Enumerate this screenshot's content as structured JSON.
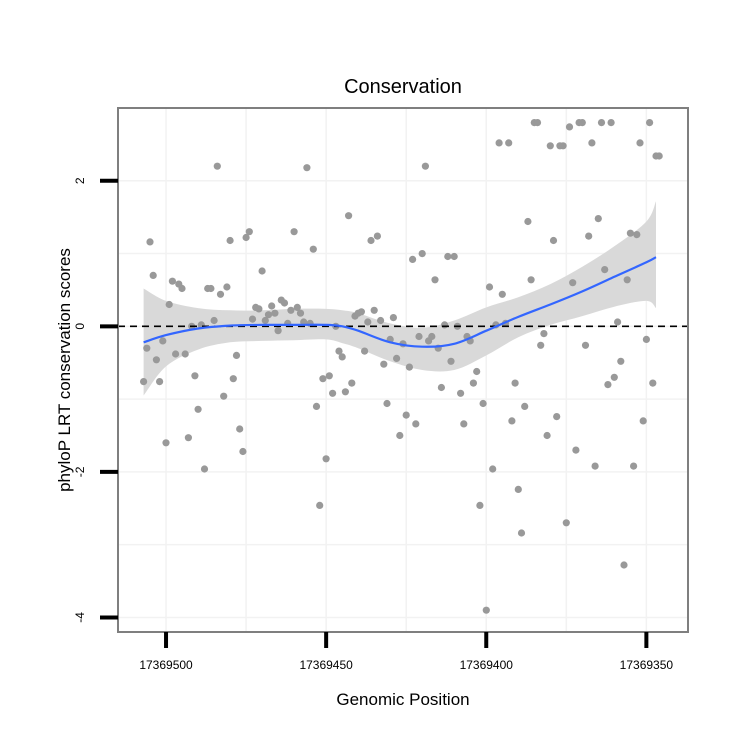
{
  "chart_data": {
    "type": "scatter",
    "title": "Conservation",
    "xlabel": "Genomic Position",
    "ylabel": "phyloP LRT conservation scores",
    "x_reversed": true,
    "xlim": [
      17369515,
      17369337
    ],
    "ylim": [
      -4.2,
      3.0
    ],
    "x_ticks": [
      17369500,
      17369450,
      17369400,
      17369350
    ],
    "x_tick_labels": [
      "17369500",
      "17369450",
      "17369400",
      "17369350"
    ],
    "y_ticks": [
      -4,
      -2,
      0,
      2
    ],
    "y_tick_labels": [
      "-4",
      "-2",
      "0",
      "2"
    ],
    "grid": true,
    "reference_line": {
      "y": 0,
      "style": "dashed"
    },
    "colors": {
      "points": "#999999",
      "smooth": "#3366FF",
      "ribbon": "#d9d9d9",
      "panel_border": "#7f7f7f",
      "grid": "#f2f2f2"
    },
    "points": [
      [
        17369507,
        -0.76
      ],
      [
        17369506,
        -0.3
      ],
      [
        17369505,
        1.16
      ],
      [
        17369504,
        0.7
      ],
      [
        17369503,
        -0.46
      ],
      [
        17369502,
        -0.76
      ],
      [
        17369501,
        -0.2
      ],
      [
        17369500,
        -1.6
      ],
      [
        17369499,
        0.3
      ],
      [
        17369498,
        0.62
      ],
      [
        17369497,
        -0.38
      ],
      [
        17369496,
        0.58
      ],
      [
        17369495,
        0.52
      ],
      [
        17369494,
        -0.38
      ],
      [
        17369493,
        -1.53
      ],
      [
        17369492,
        0.0
      ],
      [
        17369491,
        -0.68
      ],
      [
        17369490,
        -1.14
      ],
      [
        17369489,
        0.02
      ],
      [
        17369488,
        -1.96
      ],
      [
        17369487,
        0.52
      ],
      [
        17369486,
        0.52
      ],
      [
        17369485,
        0.08
      ],
      [
        17369484,
        2.2
      ],
      [
        17369483,
        0.44
      ],
      [
        17369482,
        -0.96
      ],
      [
        17369481,
        0.54
      ],
      [
        17369480,
        1.18
      ],
      [
        17369479,
        -0.72
      ],
      [
        17369478,
        -0.4
      ],
      [
        17369477,
        -1.41
      ],
      [
        17369476,
        -1.72
      ],
      [
        17369475,
        1.22
      ],
      [
        17369474,
        1.3
      ],
      [
        17369473,
        0.1
      ],
      [
        17369472,
        0.26
      ],
      [
        17369471,
        0.24
      ],
      [
        17369470,
        0.76
      ],
      [
        17369469,
        0.08
      ],
      [
        17369468,
        0.16
      ],
      [
        17369467,
        0.28
      ],
      [
        17369466,
        0.18
      ],
      [
        17369465,
        -0.06
      ],
      [
        17369464,
        0.36
      ],
      [
        17369463,
        0.32
      ],
      [
        17369462,
        0.04
      ],
      [
        17369461,
        0.22
      ],
      [
        17369460,
        1.3
      ],
      [
        17369459,
        0.26
      ],
      [
        17369458,
        0.18
      ],
      [
        17369457,
        0.06
      ],
      [
        17369456,
        2.18
      ],
      [
        17369455,
        0.04
      ],
      [
        17369454,
        1.06
      ],
      [
        17369453,
        -1.1
      ],
      [
        17369452,
        -2.46
      ],
      [
        17369451,
        -0.72
      ],
      [
        17369450,
        -1.82
      ],
      [
        17369449,
        -0.68
      ],
      [
        17369448,
        -0.92
      ],
      [
        17369447,
        0.0
      ],
      [
        17369446,
        -0.34
      ],
      [
        17369445,
        -0.42
      ],
      [
        17369444,
        -0.9
      ],
      [
        17369443,
        1.52
      ],
      [
        17369442,
        -0.78
      ],
      [
        17369441,
        0.14
      ],
      [
        17369440,
        0.18
      ],
      [
        17369439,
        0.2
      ],
      [
        17369438,
        -0.34
      ],
      [
        17369437,
        0.06
      ],
      [
        17369436,
        1.18
      ],
      [
        17369435,
        0.22
      ],
      [
        17369434,
        1.24
      ],
      [
        17369433,
        0.08
      ],
      [
        17369432,
        -0.52
      ],
      [
        17369431,
        -1.06
      ],
      [
        17369430,
        -0.18
      ],
      [
        17369429,
        0.12
      ],
      [
        17369428,
        -0.44
      ],
      [
        17369427,
        -1.5
      ],
      [
        17369426,
        -0.24
      ],
      [
        17369425,
        -1.22
      ],
      [
        17369424,
        -0.56
      ],
      [
        17369423,
        0.92
      ],
      [
        17369422,
        -1.34
      ],
      [
        17369421,
        -0.14
      ],
      [
        17369420,
        1.0
      ],
      [
        17369419,
        2.2
      ],
      [
        17369418,
        -0.2
      ],
      [
        17369417,
        -0.14
      ],
      [
        17369416,
        0.64
      ],
      [
        17369415,
        -0.3
      ],
      [
        17369414,
        -0.84
      ],
      [
        17369413,
        0.02
      ],
      [
        17369412,
        0.96
      ],
      [
        17369411,
        -0.48
      ],
      [
        17369410,
        0.96
      ],
      [
        17369409,
        0.0
      ],
      [
        17369408,
        -0.92
      ],
      [
        17369407,
        -1.34
      ],
      [
        17369406,
        -0.14
      ],
      [
        17369405,
        -0.2
      ],
      [
        17369404,
        -0.78
      ],
      [
        17369403,
        -0.62
      ],
      [
        17369402,
        -2.46
      ],
      [
        17369401,
        -1.06
      ],
      [
        17369400,
        -3.9
      ],
      [
        17369399,
        0.54
      ],
      [
        17369398,
        -1.96
      ],
      [
        17369397,
        0.02
      ],
      [
        17369396,
        2.52
      ],
      [
        17369395,
        0.44
      ],
      [
        17369394,
        0.04
      ],
      [
        17369393,
        2.52
      ],
      [
        17369392,
        -1.3
      ],
      [
        17369391,
        -0.78
      ],
      [
        17369390,
        -2.24
      ],
      [
        17369389,
        -2.84
      ],
      [
        17369388,
        -1.1
      ],
      [
        17369387,
        1.44
      ],
      [
        17369386,
        0.64
      ],
      [
        17369385,
        2.8
      ],
      [
        17369384,
        2.8
      ],
      [
        17369383,
        -0.26
      ],
      [
        17369382,
        -0.1
      ],
      [
        17369381,
        -1.5
      ],
      [
        17369380,
        2.48
      ],
      [
        17369379,
        1.18
      ],
      [
        17369378,
        -1.24
      ],
      [
        17369377,
        2.48
      ],
      [
        17369376,
        2.48
      ],
      [
        17369375,
        -2.7
      ],
      [
        17369374,
        2.74
      ],
      [
        17369373,
        0.6
      ],
      [
        17369372,
        -1.7
      ],
      [
        17369371,
        2.8
      ],
      [
        17369370,
        2.8
      ],
      [
        17369369,
        -0.26
      ],
      [
        17369368,
        1.24
      ],
      [
        17369367,
        2.52
      ],
      [
        17369366,
        -1.92
      ],
      [
        17369365,
        1.48
      ],
      [
        17369364,
        2.8
      ],
      [
        17369363,
        0.78
      ],
      [
        17369362,
        -0.8
      ],
      [
        17369361,
        2.8
      ],
      [
        17369360,
        -0.7
      ],
      [
        17369359,
        0.06
      ],
      [
        17369358,
        -0.48
      ],
      [
        17369357,
        -3.28
      ],
      [
        17369356,
        0.64
      ],
      [
        17369355,
        1.28
      ],
      [
        17369354,
        -1.92
      ],
      [
        17369353,
        1.26
      ],
      [
        17369352,
        2.52
      ],
      [
        17369351,
        -1.3
      ],
      [
        17369350,
        -0.18
      ],
      [
        17369349,
        2.8
      ],
      [
        17369348,
        -0.78
      ],
      [
        17369347,
        2.34
      ],
      [
        17369346,
        2.34
      ]
    ],
    "smooth": {
      "x": [
        17369507,
        17369500,
        17369490,
        17369480,
        17369470,
        17369460,
        17369450,
        17369445,
        17369440,
        17369430,
        17369420,
        17369410,
        17369400,
        17369390,
        17369380,
        17369370,
        17369360,
        17369350,
        17369347
      ],
      "y": [
        -0.22,
        -0.12,
        -0.03,
        0.01,
        0.02,
        0.02,
        0.02,
        0.0,
        -0.06,
        -0.22,
        -0.28,
        -0.24,
        -0.06,
        0.13,
        0.3,
        0.48,
        0.68,
        0.88,
        0.95
      ],
      "lower": [
        -0.95,
        -0.55,
        -0.32,
        -0.22,
        -0.2,
        -0.19,
        -0.18,
        -0.23,
        -0.3,
        -0.48,
        -0.6,
        -0.6,
        -0.4,
        -0.15,
        0.02,
        0.14,
        0.27,
        0.35,
        0.25
      ],
      "upper": [
        0.52,
        0.35,
        0.25,
        0.22,
        0.22,
        0.24,
        0.24,
        0.22,
        0.18,
        0.04,
        -0.02,
        0.08,
        0.26,
        0.4,
        0.58,
        0.82,
        1.1,
        1.44,
        1.72
      ]
    }
  }
}
